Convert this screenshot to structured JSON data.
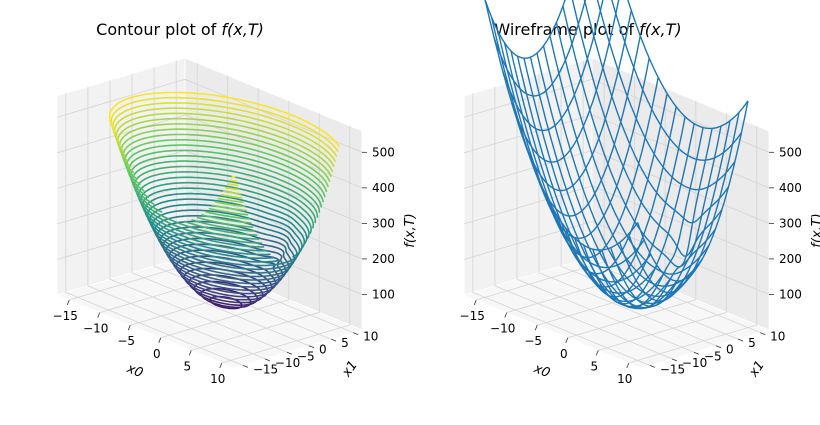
{
  "chart_data": [
    {
      "type": "3d-contour",
      "title": "Contour plot of ",
      "title_func": "f(x,T)",
      "xlabel": "x0",
      "ylabel": "x1",
      "zlabel": "f(x,T)",
      "xlim": [
        -17,
        12
      ],
      "ylim": [
        -17,
        12
      ],
      "zlim": [
        0,
        560
      ],
      "x_ticks": [
        "−15",
        "−10",
        "−5",
        "0",
        "5",
        "10"
      ],
      "y_ticks": [
        "−15",
        "−10",
        "−5",
        "0",
        "5",
        "10"
      ],
      "z_ticks": [
        "100",
        "200",
        "300",
        "400",
        "500"
      ],
      "colormap": [
        "#440154",
        "#3b528b",
        "#21918c",
        "#5ec962",
        "#fde725"
      ],
      "function": "f = 2*(x0 - 2)^2 + 2*(x1 + 5)^2 + 60 - 55*exp(-((x0-4)^2+(x1-4)^2)/3)",
      "level_step": 13,
      "grid": true
    },
    {
      "type": "3d-wireframe",
      "title": "Wireframe plot of ",
      "title_func": "f(x,T)",
      "xlabel": "x0",
      "ylabel": "x1",
      "zlabel": "f(x,T)",
      "xlim": [
        -17,
        12
      ],
      "ylim": [
        -17,
        12
      ],
      "zlim": [
        0,
        560
      ],
      "x_ticks": [
        "−15",
        "−10",
        "−5",
        "0",
        "5",
        "10"
      ],
      "y_ticks": [
        "−15",
        "−10",
        "−5",
        "0",
        "5",
        "10"
      ],
      "z_ticks": [
        "100",
        "200",
        "300",
        "400",
        "500"
      ],
      "line_color": "#1f77b4",
      "grid": true
    }
  ]
}
